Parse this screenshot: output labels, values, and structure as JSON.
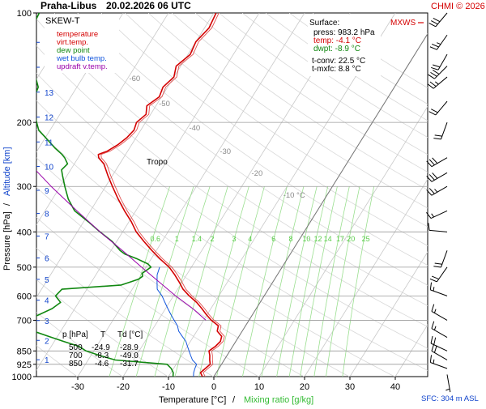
{
  "header": {
    "station": "Praha-Libus",
    "datetime": "20.02.2026 06 UTC",
    "copyright": "CHMI © 2026"
  },
  "legend": {
    "title": "SKEW-T",
    "items": [
      {
        "label": "temperature",
        "color": "#d40000"
      },
      {
        "label": "virt.temp.",
        "color": "#d40000"
      },
      {
        "label": "dew point",
        "color": "#118811"
      },
      {
        "label": "wet bulb temp.",
        "color": "#1155dd"
      },
      {
        "label": "updraft v.temp.",
        "color": "#9900aa"
      }
    ]
  },
  "surface": {
    "title": "Surface:",
    "press": "press: 983.2 hPa",
    "temp": "temp: -4.1 °C",
    "dwpt": "dwpt: -8.9 °C",
    "tconv": "t-conv: 22.5 °C",
    "tmxfc": "t-mxfc: 8.8 °C"
  },
  "mxws_label": "MXWS",
  "table": {
    "header": [
      "p [hPa]",
      "T",
      "Td [°C]"
    ],
    "rows": [
      [
        "500",
        "-24.9",
        "-28.9"
      ],
      [
        "700",
        "-8.3",
        "-49.0"
      ],
      [
        "850",
        "-4.6",
        "-31.7"
      ]
    ]
  },
  "tropo_label": "Tropo",
  "sfc_label": "SFC: 304 m ASL",
  "chart_data": {
    "type": "line",
    "xlabel": "Temperature [°C]",
    "xlabel_sep": "/",
    "xlabel2": "Mixing ratio [g/kg]",
    "ylabel": "Pressure [hPa]",
    "ylabel_sep": "/",
    "ylabel2": "Altitude [km]",
    "xlim": [
      -40,
      60
    ],
    "ylim": [
      1000,
      100
    ],
    "y_scale": "log",
    "x_ticks": [
      -30,
      -20,
      -10,
      0,
      10,
      20,
      30,
      40
    ],
    "p_ticks": [
      100,
      200,
      300,
      400,
      500,
      600,
      700,
      850,
      925,
      1000
    ],
    "km_ticks": [
      1,
      2,
      3,
      4,
      5,
      6,
      7,
      8,
      9,
      10,
      11,
      12,
      13,
      14,
      15
    ],
    "isotherm_labels": [
      "-80 °C",
      "-70",
      "-60",
      "-50",
      "-40",
      "-30",
      "-20",
      "-10 °C"
    ],
    "mixing_ratio_labels": [
      "0.6",
      "1",
      "1.4",
      "2",
      "3",
      "4",
      "6",
      "8",
      "10",
      "12",
      "14",
      "17",
      "20",
      "25"
    ],
    "series": [
      {
        "name": "temperature",
        "color": "#d40000",
        "points": [
          [
            1000,
            -2.5
          ],
          [
            975,
            -3.5
          ],
          [
            950,
            -3.0
          ],
          [
            925,
            -2.5
          ],
          [
            900,
            -3.2
          ],
          [
            875,
            -3.8
          ],
          [
            850,
            -4.6
          ],
          [
            825,
            -3.8
          ],
          [
            800,
            -3.4
          ],
          [
            775,
            -3.8
          ],
          [
            750,
            -5.5
          ],
          [
            725,
            -6.0
          ],
          [
            700,
            -8.3
          ],
          [
            675,
            -10.2
          ],
          [
            650,
            -12.0
          ],
          [
            625,
            -14.0
          ],
          [
            600,
            -16.5
          ],
          [
            575,
            -18.8
          ],
          [
            550,
            -20.6
          ],
          [
            525,
            -22.6
          ],
          [
            500,
            -24.9
          ],
          [
            475,
            -28.0
          ],
          [
            450,
            -31.0
          ],
          [
            425,
            -34.0
          ],
          [
            400,
            -37.0
          ],
          [
            375,
            -39.5
          ],
          [
            350,
            -42.5
          ],
          [
            325,
            -45.5
          ],
          [
            300,
            -48.5
          ],
          [
            280,
            -51.0
          ],
          [
            260,
            -53.5
          ],
          [
            250,
            -55.5
          ],
          [
            245,
            -56.0
          ],
          [
            240,
            -54.5
          ],
          [
            230,
            -53.0
          ],
          [
            220,
            -52.0
          ],
          [
            210,
            -51.5
          ],
          [
            200,
            -52.0
          ],
          [
            190,
            -51.0
          ],
          [
            180,
            -52.0
          ],
          [
            170,
            -50.5
          ],
          [
            160,
            -51.0
          ],
          [
            150,
            -50.0
          ],
          [
            140,
            -51.0
          ],
          [
            130,
            -49.5
          ],
          [
            120,
            -50.0
          ],
          [
            110,
            -49.0
          ],
          [
            100,
            -49.5
          ]
        ]
      },
      {
        "name": "dew point",
        "color": "#118811",
        "points": [
          [
            1000,
            -9.0
          ],
          [
            975,
            -9.5
          ],
          [
            950,
            -10.5
          ],
          [
            925,
            -12.0
          ],
          [
            900,
            -24.0
          ],
          [
            875,
            -28.0
          ],
          [
            850,
            -31.7
          ],
          [
            825,
            -34.0
          ],
          [
            800,
            -38.0
          ],
          [
            775,
            -42.0
          ],
          [
            750,
            -46.0
          ],
          [
            725,
            -47.5
          ],
          [
            700,
            -49.0
          ],
          [
            675,
            -47.0
          ],
          [
            650,
            -45.0
          ],
          [
            625,
            -44.0
          ],
          [
            600,
            -46.0
          ],
          [
            575,
            -45.5
          ],
          [
            560,
            -33.0
          ],
          [
            550,
            -31.5
          ],
          [
            540,
            -30.0
          ],
          [
            530,
            -29.5
          ],
          [
            520,
            -30.0
          ],
          [
            500,
            -28.9
          ],
          [
            490,
            -30.0
          ],
          [
            475,
            -33.0
          ],
          [
            460,
            -36.5
          ],
          [
            450,
            -38.0
          ],
          [
            425,
            -41.0
          ],
          [
            400,
            -45.0
          ],
          [
            375,
            -49.0
          ],
          [
            350,
            -53.5
          ],
          [
            325,
            -56.5
          ],
          [
            300,
            -59.0
          ],
          [
            280,
            -61.0
          ],
          [
            270,
            -62.0
          ],
          [
            260,
            -61.5
          ],
          [
            250,
            -63.0
          ],
          [
            245,
            -64.0
          ],
          [
            235,
            -66.5
          ],
          [
            220,
            -70.0
          ],
          [
            210,
            -72.5
          ],
          [
            200,
            -74.0
          ],
          [
            190,
            -75.5
          ],
          [
            180,
            -77.0
          ],
          [
            170,
            -78.0
          ],
          [
            160,
            -78.5
          ],
          [
            150,
            -80.5
          ],
          [
            140,
            -82.0
          ],
          [
            130,
            -84.0
          ],
          [
            120,
            -86.0
          ],
          [
            110,
            -88.0
          ],
          [
            100,
            -88.5
          ]
        ]
      },
      {
        "name": "wet bulb temp.",
        "color": "#1155dd",
        "points": [
          [
            1000,
            -4.5
          ],
          [
            975,
            -5.0
          ],
          [
            950,
            -5.3
          ],
          [
            925,
            -5.5
          ],
          [
            900,
            -7.0
          ],
          [
            875,
            -8.0
          ],
          [
            850,
            -9.0
          ],
          [
            825,
            -10.0
          ],
          [
            800,
            -11.0
          ],
          [
            775,
            -12.5
          ],
          [
            750,
            -14.0
          ],
          [
            725,
            -15.0
          ],
          [
            700,
            -16.5
          ],
          [
            675,
            -18.0
          ],
          [
            650,
            -19.5
          ],
          [
            625,
            -21.0
          ],
          [
            600,
            -22.5
          ],
          [
            575,
            -24.5
          ],
          [
            550,
            -25.5
          ],
          [
            525,
            -26.5
          ],
          [
            500,
            -27.0
          ]
        ]
      },
      {
        "name": "updraft v.temp.",
        "color": "#9900aa",
        "points": [
          [
            700,
            -9.5
          ],
          [
            650,
            -14.0
          ],
          [
            600,
            -19.5
          ],
          [
            550,
            -25.0
          ],
          [
            500,
            -31.0
          ],
          [
            450,
            -37.5
          ],
          [
            400,
            -45.0
          ],
          [
            350,
            -53.0
          ],
          [
            300,
            -62.0
          ],
          [
            250,
            -72.0
          ],
          [
            200,
            -83.0
          ],
          [
            150,
            -96.0
          ],
          [
            125,
            -104.0
          ],
          [
            112,
            -110.0
          ]
        ]
      }
    ],
    "winds": [
      {
        "p": 987,
        "dir": 170,
        "spd": 5
      },
      {
        "p": 950,
        "dir": 290,
        "spd": 15
      },
      {
        "p": 900,
        "dir": 300,
        "spd": 20
      },
      {
        "p": 850,
        "dir": 295,
        "spd": 20
      },
      {
        "p": 780,
        "dir": 300,
        "spd": 15
      },
      {
        "p": 700,
        "dir": 300,
        "spd": 15
      },
      {
        "p": 600,
        "dir": 290,
        "spd": 15
      },
      {
        "p": 500,
        "dir": 215,
        "spd": 20
      },
      {
        "p": 450,
        "dir": 200,
        "spd": 20
      },
      {
        "p": 400,
        "dir": 275,
        "spd": 10
      },
      {
        "p": 350,
        "dir": 245,
        "spd": 15
      },
      {
        "p": 300,
        "dir": 240,
        "spd": 25
      },
      {
        "p": 275,
        "dir": 240,
        "spd": 30
      },
      {
        "p": 250,
        "dir": 240,
        "spd": 30
      },
      {
        "p": 200,
        "dir": 200,
        "spd": 20
      },
      {
        "p": 175,
        "dir": 220,
        "spd": 20
      },
      {
        "p": 150,
        "dir": 230,
        "spd": 25
      },
      {
        "p": 140,
        "dir": 225,
        "spd": 30
      },
      {
        "p": 130,
        "dir": 210,
        "spd": 20
      },
      {
        "p": 115,
        "dir": 215,
        "spd": 25
      },
      {
        "p": 100,
        "dir": 220,
        "spd": 30
      }
    ]
  }
}
